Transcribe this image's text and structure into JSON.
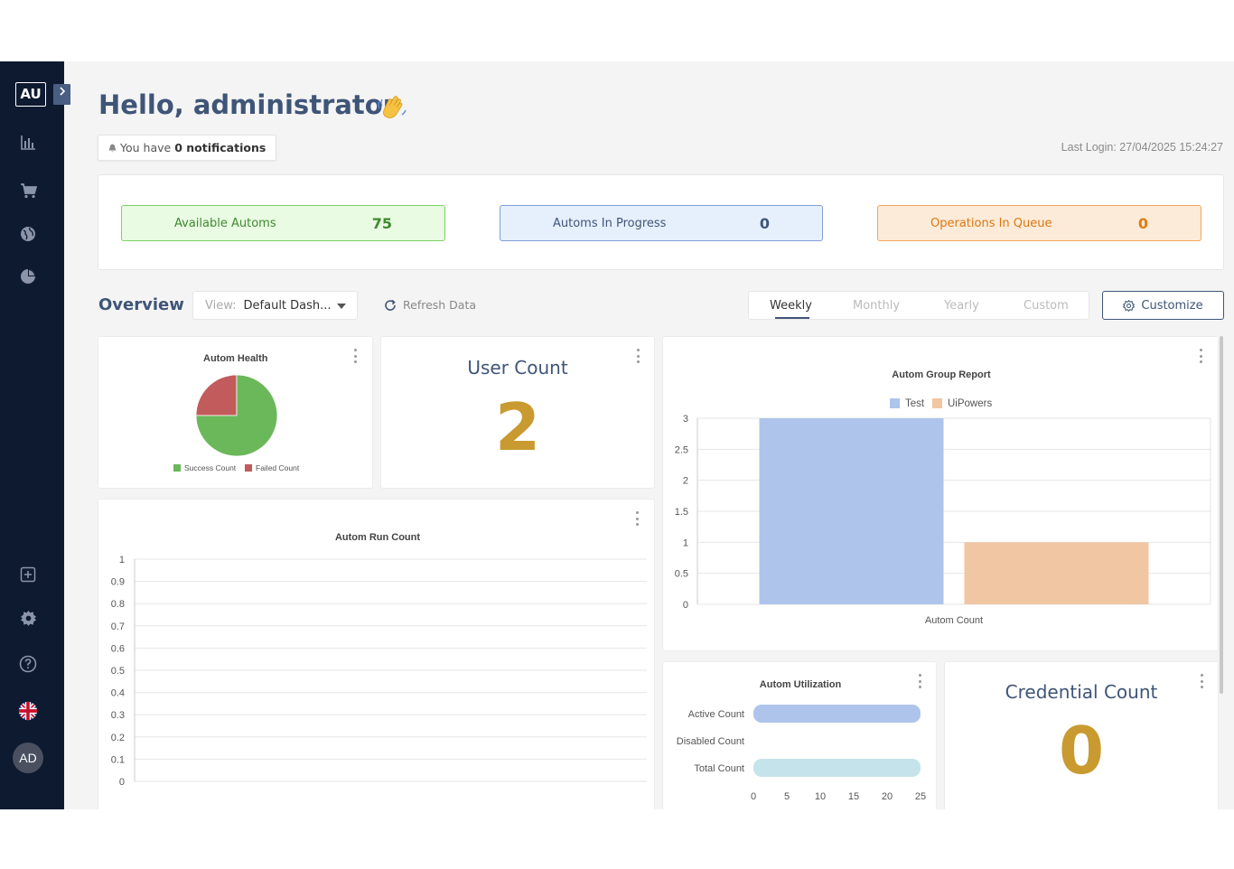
{
  "sidebar": {
    "logo": "AU",
    "expand_icon": "chevron-right-icon",
    "nav_icons": [
      "bar-chart-icon",
      "cart-icon",
      "globe-icon",
      "pie-chart-icon"
    ],
    "bottom_icons": [
      "add-box-icon",
      "gear-icon",
      "help-icon",
      "uk-flag-icon"
    ],
    "avatar": "AD"
  },
  "header": {
    "greeting": "Hello, administrator",
    "notif_prefix": "You have",
    "notif_count": "0 notifications",
    "last_login": "Last Login: 27/04/2025 15:24:27"
  },
  "stats": {
    "available": {
      "label": "Available Automs",
      "value": "75",
      "color": "#3d8a2e"
    },
    "in_progress": {
      "label": "Automs In Progress",
      "value": "0",
      "color": "#3f5578"
    },
    "queue": {
      "label": "Operations In Queue",
      "value": "0",
      "color": "#e07c12"
    }
  },
  "toolbar": {
    "overview": "Overview",
    "view_label": "View:",
    "view_value": "Default Dash...",
    "refresh": "Refresh Data",
    "tabs": [
      "Weekly",
      "Monthly",
      "Yearly",
      "Custom"
    ],
    "active_tab": "Weekly",
    "customize": "Customize"
  },
  "widgets": {
    "autom_health": {
      "title": "Autom Health"
    },
    "user_count": {
      "title": "User Count",
      "value": "2"
    },
    "group_report": {
      "title": "Autom Group Report"
    },
    "run_count": {
      "title": "Autom Run Count"
    },
    "utilization": {
      "title": "Autom Utilization"
    },
    "credential_count": {
      "title": "Credential Count",
      "value": "0"
    }
  },
  "chart_data": [
    {
      "type": "pie",
      "title": "Autom Health",
      "labels": [
        "Success Count",
        "Failed Count"
      ],
      "values": [
        75,
        25
      ],
      "colors": [
        "#6bb85a",
        "#c25b5b"
      ]
    },
    {
      "type": "bar",
      "title": "Autom Group Report",
      "categories": [
        "Autom Count"
      ],
      "series": [
        {
          "name": "Test",
          "values": [
            3
          ],
          "color": "#aec4eb"
        },
        {
          "name": "UiPowers",
          "values": [
            1
          ],
          "color": "#f1c6a3"
        }
      ],
      "xlabel": "Autom Count",
      "yticks": [
        "0",
        "0.5",
        "1",
        "1.5",
        "2",
        "2.5",
        "3"
      ],
      "ylim": [
        0,
        3
      ]
    },
    {
      "type": "line",
      "title": "Autom Run Count",
      "series": [],
      "yticks": [
        "0",
        "0.1",
        "0.2",
        "0.3",
        "0.4",
        "0.5",
        "0.6",
        "0.7",
        "0.8",
        "0.9",
        "1"
      ],
      "ylim": [
        0,
        1
      ]
    },
    {
      "type": "bar",
      "orientation": "horizontal",
      "title": "Autom Utilization",
      "categories": [
        "Active Count",
        "Disabled Count",
        "Total Count"
      ],
      "values": [
        25,
        0,
        25
      ],
      "colors": [
        "#aec4eb",
        "#aec4eb",
        "#c5e3ea"
      ],
      "xticks": [
        "0",
        "5",
        "10",
        "15",
        "20",
        "25"
      ],
      "xlim": [
        0,
        25
      ]
    }
  ]
}
